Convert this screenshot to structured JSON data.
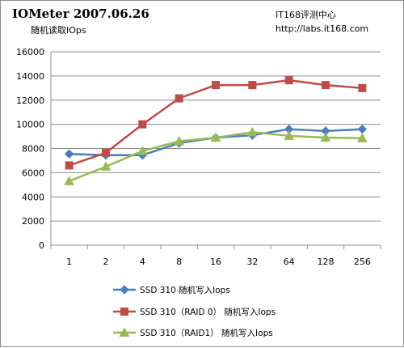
{
  "header": {
    "title": "IOMeter  2007.06.26",
    "subtitle": "随机读取IOps",
    "site_name": "IT168评测中心",
    "site_url": "http://labs.it168.com"
  },
  "chart_data": {
    "type": "line",
    "title": "IOMeter  2007.06.26",
    "subtitle": "随机读取IOps",
    "categories": [
      "1",
      "2",
      "4",
      "8",
      "16",
      "32",
      "64",
      "128",
      "256"
    ],
    "ylim": [
      0,
      16000
    ],
    "yticks": [
      0,
      2000,
      4000,
      6000,
      8000,
      10000,
      12000,
      14000,
      16000
    ],
    "grid": true,
    "legend_position": "bottom",
    "series": [
      {
        "name": "SSD 310 随机写入Iops",
        "color": "#4a7ebb",
        "marker": "diamond",
        "values": [
          7550,
          7450,
          7450,
          8450,
          8900,
          9100,
          9600,
          9450,
          9600
        ]
      },
      {
        "name": "SSD 310（RAID 0） 随机写入Iops",
        "color": "#be4b48",
        "marker": "square",
        "values": [
          6600,
          7650,
          10000,
          12150,
          13250,
          13250,
          13650,
          13250,
          13000
        ]
      },
      {
        "name": "SSD 310（RAID1） 随机写入Iops",
        "color": "#98b954",
        "marker": "triangle",
        "values": [
          5300,
          6500,
          7800,
          8600,
          8900,
          9350,
          9050,
          8900,
          8850
        ]
      }
    ]
  }
}
